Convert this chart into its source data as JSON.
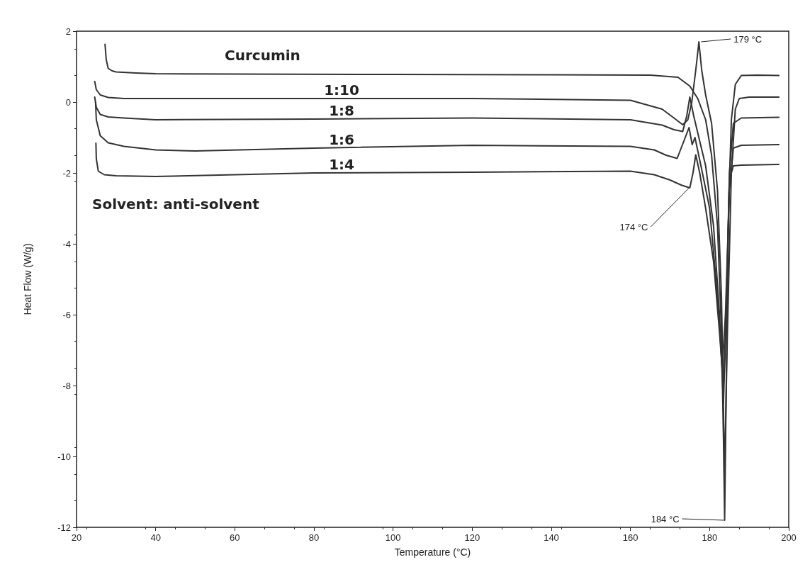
{
  "chart_data": {
    "type": "line",
    "xlabel": "Temperature (°C)",
    "ylabel": "Heat Flow (W/g)",
    "xlim": [
      20,
      200
    ],
    "xticks": [
      20,
      40,
      60,
      80,
      100,
      120,
      140,
      160,
      180,
      200
    ],
    "ylim": [
      -12,
      2
    ],
    "yticks": [
      -12,
      -10,
      -8,
      -6,
      -4,
      -2,
      0,
      2
    ],
    "grid": false,
    "legend": false,
    "marker": "none",
    "line_style": "solid",
    "series": [
      {
        "name": "Curcumin",
        "color": "#333333",
        "x": [
          27.2,
          27.5,
          28,
          29,
          30,
          35,
          40,
          60,
          100,
          140,
          165,
          172,
          175,
          177,
          179,
          180.5,
          182,
          183,
          183.5,
          183.8,
          184.2,
          184.8,
          185.5,
          186.5,
          188,
          192,
          197.5
        ],
        "values": [
          1.63,
          1.2,
          0.95,
          0.88,
          0.85,
          0.82,
          0.8,
          0.79,
          0.78,
          0.77,
          0.76,
          0.7,
          0.45,
          0.1,
          -0.5,
          -1.5,
          -3.5,
          -6.5,
          -9.5,
          -11.8,
          -8,
          -3,
          -0.5,
          0.5,
          0.75,
          0.76,
          0.75
        ]
      },
      {
        "name": "1:10",
        "color": "#333333",
        "x": [
          24.6,
          25,
          26,
          28,
          32,
          40,
          80,
          120,
          160,
          168,
          171,
          173.2,
          174.5,
          175.5,
          176.5,
          177.3,
          178,
          179,
          180.5,
          182,
          183,
          183.8,
          184.5,
          185.5,
          186.5,
          187.5,
          190,
          197.5
        ],
        "values": [
          0.58,
          0.35,
          0.2,
          0.13,
          0.1,
          0.1,
          0.1,
          0.1,
          0.05,
          -0.2,
          -0.45,
          -0.64,
          -0.5,
          0.0,
          0.9,
          1.7,
          0.9,
          0.2,
          -0.6,
          -2.5,
          -5.5,
          -10.5,
          -6.5,
          -2,
          -0.2,
          0.1,
          0.14,
          0.14
        ]
      },
      {
        "name": "1:8",
        "color": "#333333",
        "x": [
          24.6,
          25,
          26,
          28,
          32,
          40,
          80,
          120,
          160,
          168,
          171,
          173.2,
          174.2,
          175,
          176,
          177.5,
          179,
          181,
          182.5,
          183.5,
          184.2,
          185,
          186,
          188,
          197.5
        ],
        "values": [
          0.14,
          -0.15,
          -0.35,
          -0.42,
          -0.45,
          -0.5,
          -0.48,
          -0.45,
          -0.5,
          -0.65,
          -0.78,
          -0.83,
          -0.4,
          0.14,
          -0.4,
          -1.1,
          -1.8,
          -3.5,
          -6,
          -8.5,
          -6,
          -2,
          -0.6,
          -0.45,
          -0.43
        ]
      },
      {
        "name": "1:6",
        "color": "#333333",
        "x": [
          24.8,
          25,
          26,
          28,
          32,
          40,
          50,
          80,
          120,
          160,
          166,
          169,
          171.8,
          173.5,
          174.8,
          175.6,
          176.3,
          178,
          180,
          182,
          183.2,
          184,
          185,
          186,
          188,
          197.5
        ],
        "values": [
          0.0,
          -0.5,
          -0.95,
          -1.15,
          -1.25,
          -1.35,
          -1.38,
          -1.3,
          -1.22,
          -1.25,
          -1.35,
          -1.5,
          -1.59,
          -1.1,
          -0.72,
          -1.2,
          -1.0,
          -1.9,
          -3,
          -5.5,
          -7.5,
          -6,
          -2.5,
          -1.3,
          -1.22,
          -1.2
        ]
      },
      {
        "name": "1:4",
        "color": "#333333",
        "x": [
          24.9,
          25,
          25.5,
          27,
          30,
          40,
          80,
          120,
          160,
          166,
          170,
          173,
          175,
          175.8,
          176.5,
          177.5,
          179,
          181,
          182.5,
          183.5,
          184.2,
          185,
          186,
          188,
          197.5
        ],
        "values": [
          -1.16,
          -1.6,
          -1.95,
          -2.05,
          -2.08,
          -2.1,
          -2.0,
          -1.98,
          -1.95,
          -2.05,
          -2.2,
          -2.35,
          -2.42,
          -2.0,
          -1.49,
          -2.0,
          -3,
          -4.5,
          -6.5,
          -8,
          -6,
          -2.2,
          -1.8,
          -1.78,
          -1.76
        ]
      }
    ],
    "annotations": [
      {
        "text": "179 °C",
        "x": 177.3,
        "y": 1.7
      },
      {
        "text": "174 °C",
        "x": 175,
        "y": -2.42
      },
      {
        "text": "184 °C",
        "x": 183.8,
        "y": -11.8
      },
      "Solvent: anti-solvent"
    ]
  }
}
